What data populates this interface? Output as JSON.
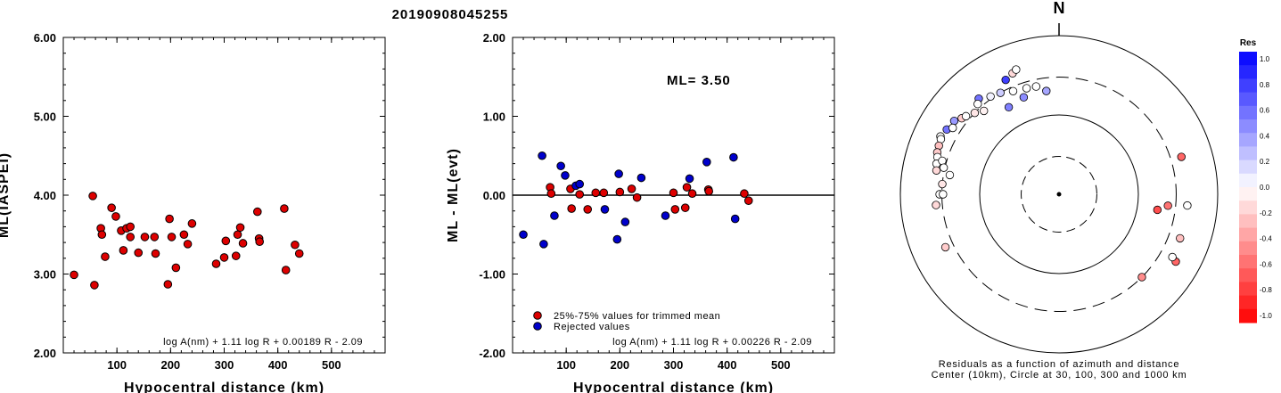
{
  "figure_title": "20190908045255",
  "chart_data": [
    {
      "type": "scatter",
      "id": "ml-vs-distance",
      "xlabel": "Hypocentral distance (km)",
      "ylabel": "ML(IASPEI)",
      "xlim": [
        0,
        600
      ],
      "ylim": [
        2.0,
        6.0
      ],
      "xticks": [
        "100",
        "200",
        "300",
        "400",
        "500"
      ],
      "yticks": [
        "2.00",
        "3.00",
        "4.00",
        "5.00",
        "6.00"
      ],
      "formula": "log A(nm) + 1.11 log R + 0.00189 R - 2.09",
      "point_color": "#dd0000",
      "series": [
        {
          "points": [
            [
              20,
              2.99
            ],
            [
              55,
              3.99
            ],
            [
              58,
              2.86
            ],
            [
              70,
              3.58
            ],
            [
              72,
              3.5
            ],
            [
              78,
              3.22
            ],
            [
              90,
              3.84
            ],
            [
              98,
              3.73
            ],
            [
              108,
              3.55
            ],
            [
              112,
              3.3
            ],
            [
              118,
              3.58
            ],
            [
              125,
              3.6
            ],
            [
              125,
              3.47
            ],
            [
              140,
              3.27
            ],
            [
              152,
              3.47
            ],
            [
              170,
              3.47
            ],
            [
              172,
              3.26
            ],
            [
              195,
              2.87
            ],
            [
              198,
              3.7
            ],
            [
              202,
              3.47
            ],
            [
              210,
              3.08
            ],
            [
              225,
              3.5
            ],
            [
              232,
              3.38
            ],
            [
              240,
              3.64
            ],
            [
              285,
              3.13
            ],
            [
              300,
              3.21
            ],
            [
              303,
              3.42
            ],
            [
              325,
              3.5
            ],
            [
              322,
              3.23
            ],
            [
              330,
              3.59
            ],
            [
              335,
              3.39
            ],
            [
              362,
              3.79
            ],
            [
              365,
              3.45
            ],
            [
              366,
              3.41
            ],
            [
              412,
              3.83
            ],
            [
              415,
              3.05
            ],
            [
              432,
              3.37
            ],
            [
              440,
              3.26
            ]
          ]
        }
      ]
    },
    {
      "type": "scatter",
      "id": "residual-vs-distance",
      "xlabel": "Hypocentral distance (km)",
      "ylabel": "ML - ML(evt)",
      "xlim": [
        0,
        600
      ],
      "ylim": [
        -2.0,
        2.0
      ],
      "xticks": [
        "100",
        "200",
        "300",
        "400",
        "500"
      ],
      "yticks": [
        "-2.00",
        "-1.00",
        "0.00",
        "1.00",
        "2.00"
      ],
      "annotation": "ML= 3.50",
      "formula": "log A(nm) + 1.11 log R + 0.00226 R - 2.09",
      "legend_position": "bottom-left",
      "series": [
        {
          "name": "25%-75% values for trimmed mean",
          "color": "#dd0000",
          "points": [
            [
              70,
              0.1
            ],
            [
              72,
              0.02
            ],
            [
              108,
              0.08
            ],
            [
              110,
              -0.17
            ],
            [
              125,
              0.01
            ],
            [
              140,
              -0.18
            ],
            [
              155,
              0.03
            ],
            [
              170,
              0.03
            ],
            [
              200,
              0.04
            ],
            [
              222,
              0.08
            ],
            [
              232,
              -0.03
            ],
            [
              300,
              0.03
            ],
            [
              303,
              -0.18
            ],
            [
              325,
              0.1
            ],
            [
              322,
              -0.16
            ],
            [
              335,
              0.02
            ],
            [
              365,
              0.07
            ],
            [
              366,
              0.05
            ],
            [
              432,
              0.02
            ],
            [
              440,
              -0.07
            ]
          ]
        },
        {
          "name": "Rejected values",
          "color": "#0000cc",
          "points": [
            [
              20,
              -0.5
            ],
            [
              55,
              0.5
            ],
            [
              58,
              -0.62
            ],
            [
              78,
              -0.26
            ],
            [
              90,
              0.37
            ],
            [
              98,
              0.25
            ],
            [
              118,
              0.12
            ],
            [
              125,
              0.14
            ],
            [
              172,
              -0.18
            ],
            [
              195,
              -0.56
            ],
            [
              198,
              0.27
            ],
            [
              210,
              -0.34
            ],
            [
              240,
              0.22
            ],
            [
              285,
              -0.26
            ],
            [
              330,
              0.21
            ],
            [
              362,
              0.42
            ],
            [
              412,
              0.48
            ],
            [
              415,
              -0.3
            ]
          ]
        }
      ]
    }
  ],
  "polar_plot": {
    "north_label": "N",
    "caption_line1": "Residuals as a function of azimuth and distance",
    "caption_line2": "Center (10km), Circle at 30, 100, 300 and 1000 km",
    "stations": [
      {
        "az": 335,
        "dist": 390,
        "res": 0.75
      },
      {
        "az": 339,
        "dist": 430,
        "res": -0.15
      },
      {
        "az": 341,
        "dist": 460,
        "res": 0.0
      },
      {
        "az": 320,
        "dist": 375,
        "res": 0.55
      },
      {
        "az": 318,
        "dist": 340,
        "res": 0.0
      },
      {
        "az": 325,
        "dist": 320,
        "res": 0.05
      },
      {
        "az": 330,
        "dist": 300,
        "res": 0.2
      },
      {
        "az": 336,
        "dist": 265,
        "res": 0.0
      },
      {
        "az": 343,
        "dist": 250,
        "res": 0.0
      },
      {
        "az": 348,
        "dist": 245,
        "res": 0.0
      },
      {
        "az": 353,
        "dist": 205,
        "res": 0.35
      },
      {
        "az": 340,
        "dist": 200,
        "res": 0.45
      },
      {
        "az": 330,
        "dist": 185,
        "res": 0.5
      },
      {
        "az": 300,
        "dist": 430,
        "res": 0.55
      },
      {
        "az": 305,
        "dist": 410,
        "res": 0.4
      },
      {
        "az": 302,
        "dist": 380,
        "res": 0.0
      },
      {
        "az": 308,
        "dist": 360,
        "res": -0.2
      },
      {
        "az": 310,
        "dist": 340,
        "res": 0.0
      },
      {
        "az": 314,
        "dist": 300,
        "res": -0.1
      },
      {
        "az": 318,
        "dist": 260,
        "res": -0.05
      },
      {
        "az": 296,
        "dist": 460,
        "res": 0.0
      },
      {
        "az": 295,
        "dist": 440,
        "res": 0.0
      },
      {
        "az": 292,
        "dist": 430,
        "res": -0.25
      },
      {
        "az": 289,
        "dist": 420,
        "res": -0.2
      },
      {
        "az": 287,
        "dist": 400,
        "res": 0.0
      },
      {
        "az": 284,
        "dist": 390,
        "res": 0.0
      },
      {
        "az": 281,
        "dist": 375,
        "res": -0.15
      },
      {
        "az": 286,
        "dist": 340,
        "res": 0.0
      },
      {
        "az": 283,
        "dist": 310,
        "res": 0.0
      },
      {
        "az": 280,
        "dist": 250,
        "res": 0.0
      },
      {
        "az": 275,
        "dist": 300,
        "res": -0.1
      },
      {
        "az": 270,
        "dist": 320,
        "res": 0.0
      },
      {
        "az": 245,
        "dist": 380,
        "res": -0.2
      },
      {
        "az": 270,
        "dist": 290,
        "res": 0.0
      },
      {
        "az": 265,
        "dist": 360,
        "res": -0.15
      },
      {
        "az": 73,
        "dist": 410,
        "res": -0.6
      },
      {
        "az": 95,
        "dist": 420,
        "res": 0.0
      },
      {
        "az": 110,
        "dist": 420,
        "res": -0.25
      },
      {
        "az": 135,
        "dist": 300,
        "res": -0.45
      },
      {
        "az": 120,
        "dist": 500,
        "res": -0.6
      },
      {
        "az": 96,
        "dist": 240,
        "res": -0.55
      },
      {
        "az": 119,
        "dist": 430,
        "res": 0.0
      },
      {
        "az": 99,
        "dist": 180,
        "res": -0.7
      }
    ],
    "colorbar": {
      "title": "Res",
      "labels": [
        "1.0",
        "0.8",
        "0.6",
        "0.4",
        "0.2",
        "0.0",
        "-0.2",
        "-0.4",
        "-0.6",
        "-0.8",
        "-1.0"
      ]
    }
  }
}
